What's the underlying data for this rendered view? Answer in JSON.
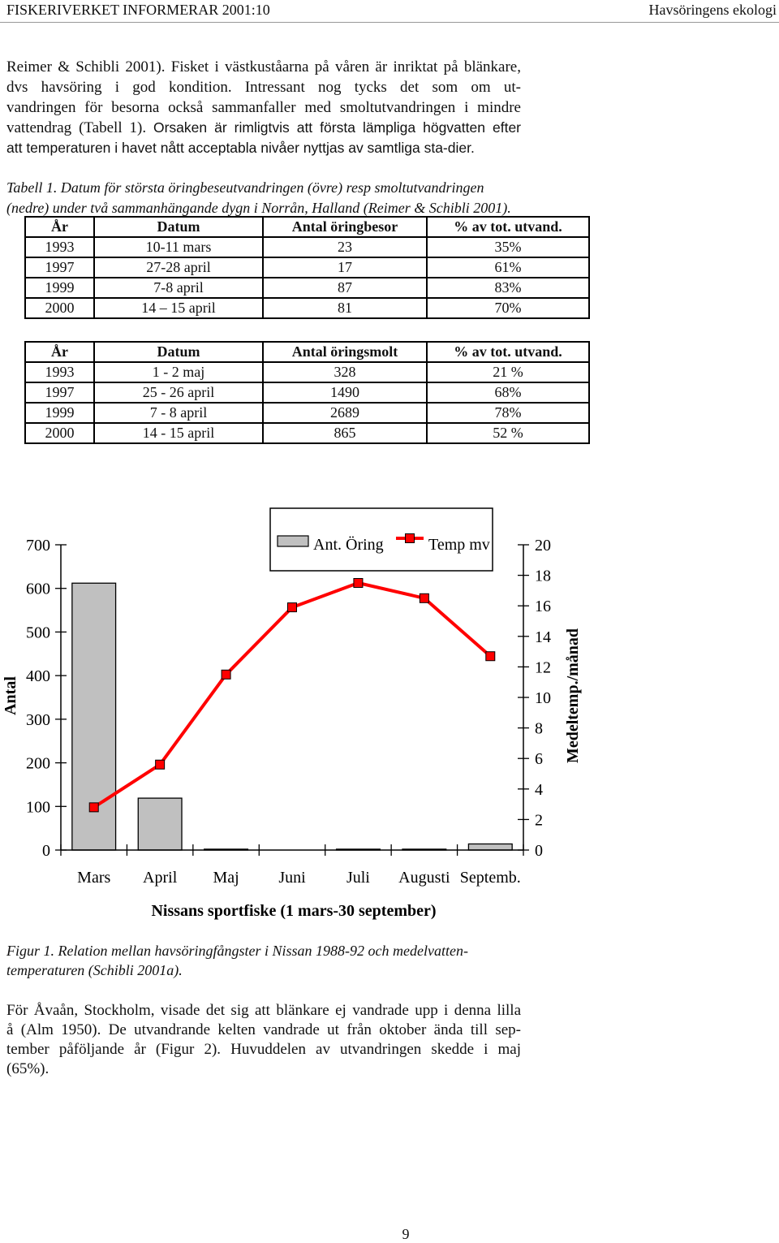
{
  "header": {
    "left": "FISKERIVERKET INFORMERAR 2001:10",
    "right": "Havsöringens ekologi"
  },
  "paragraph1": {
    "lines": [
      "Reimer & Schibli 2001). Fisket i västkuståarna på våren är inriktat på blänkare,",
      "dvs havsöring i god kondition. Intressant nog tycks det som om ut-",
      "vandringen för besorna också sammanfaller med smoltutvandringen i mindre",
      [
        "vattendrag (Tabell 1). ",
        "Orsaken är rimligtvis att första lämpliga högvatten efter"
      ],
      "att temperaturen i havet nått acceptabla nivåer nyttjas av samtliga sta-dier."
    ]
  },
  "table_caption": [
    "Tabell 1. Datum för största öringbeseutvandringen (övre) resp smoltutvandringen",
    "(nedre) under två sammanhängande dygn i Norrån, Halland (Reimer & Schibli 2001)."
  ],
  "table_upper": {
    "headers": [
      "År",
      "Datum",
      "Antal öringbesor",
      "% av tot. utvand."
    ],
    "rows": [
      [
        "1993",
        "10-11 mars",
        "23",
        "35%"
      ],
      [
        "1997",
        "27-28 april",
        "17",
        "61%"
      ],
      [
        "1999",
        "7-8 april",
        "87",
        "83%"
      ],
      [
        "2000",
        "14 – 15 april",
        "81",
        "70%"
      ]
    ]
  },
  "table_lower": {
    "headers": [
      "År",
      "Datum",
      "Antal öringsmolt",
      "% av tot. utvand."
    ],
    "rows": [
      [
        "1993",
        "1 - 2 maj",
        "328",
        "21 %"
      ],
      [
        "1997",
        "25 - 26 april",
        "1490",
        "68%"
      ],
      [
        "1999",
        "7 - 8 april",
        "2689",
        "78%"
      ],
      [
        "2000",
        "14 - 15 april",
        "865",
        "52 %"
      ]
    ]
  },
  "chart_data": {
    "type": "bar",
    "categories": [
      "Mars",
      "April",
      "Maj",
      "Juni",
      "Juli",
      "Augusti",
      "Septemb."
    ],
    "series": [
      {
        "name": "Ant. Öring",
        "type": "bar",
        "axis": "left",
        "color": "#c0c0c0",
        "values": [
          612,
          119,
          2,
          0,
          2,
          2,
          14
        ]
      },
      {
        "name": "Temp mv",
        "type": "line",
        "axis": "right",
        "color": "#ff0000",
        "values": [
          2.8,
          5.6,
          11.5,
          15.9,
          17.5,
          16.5,
          12.7
        ]
      }
    ],
    "xlabel": "Nissans sportfiske (1 mars-30 september)",
    "ylabel": "Antal",
    "y2label": "Medeltemp./månad",
    "ylim": [
      0,
      700
    ],
    "y2lim": [
      0,
      20
    ],
    "yticks": [
      0,
      100,
      200,
      300,
      400,
      500,
      600,
      700
    ],
    "y2ticks": [
      0,
      2,
      4,
      6,
      8,
      10,
      12,
      14,
      16,
      18,
      20
    ],
    "grid": false,
    "legend": "top"
  },
  "figure_caption": [
    "Figur 1. Relation mellan havsöringfångster i Nissan 1988-92 och medelvatten-",
    "temperaturen (Schibli 2001a)."
  ],
  "paragraph2": {
    "lines": [
      "För Åvaån, Stockholm, visade det sig att blänkare ej vandrade upp i denna lilla",
      "å (Alm 1950). De utvandrande kelten vandrade ut från oktober ända till sep-",
      "tember påföljande år (Figur 2). Huvuddelen av utvandringen skedde i maj",
      "(65%)."
    ]
  },
  "page_number": "9"
}
